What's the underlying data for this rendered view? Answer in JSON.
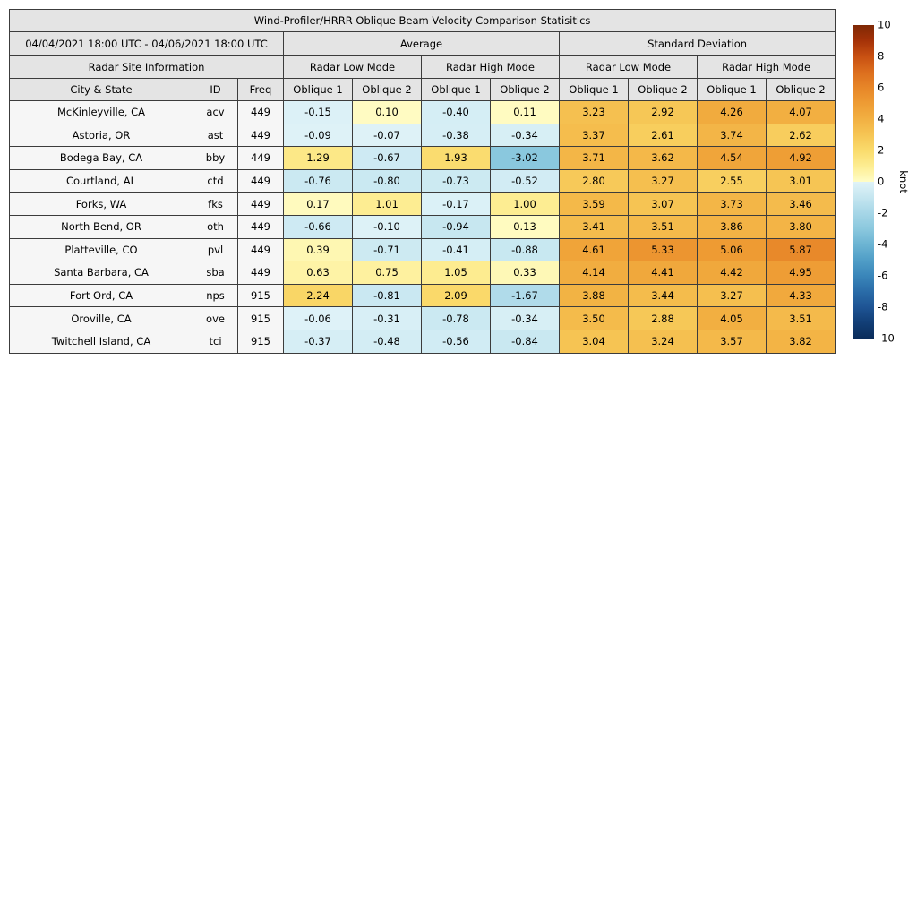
{
  "colors": {
    "header_bg": "#e4e4e4",
    "site_cell_bg": "#f6f6f6",
    "grid_line": "#3c3c3c",
    "page_bg": "#ffffff"
  },
  "chart_data": {
    "type": "table",
    "title": "Wind-Profiler/HRRR Oblique Beam Velocity Comparison Statisitics",
    "date_range": "04/04/2021 18:00 UTC - 04/06/2021 18:00 UTC",
    "header": {
      "site_info": "Radar Site Information",
      "top_groups": [
        "Average",
        "Standard Deviation"
      ],
      "mode_groups": [
        "Radar Low Mode",
        "Radar High Mode",
        "Radar Low Mode",
        "Radar High Mode"
      ],
      "columns": [
        "City & State",
        "ID",
        "Freq",
        "Oblique 1",
        "Oblique 2",
        "Oblique 1",
        "Oblique 2",
        "Oblique 1",
        "Oblique 2",
        "Oblique 1",
        "Oblique 2"
      ]
    },
    "rows": [
      {
        "city": "McKinleyville, CA",
        "id": "acv",
        "freq": "449",
        "values": [
          -0.15,
          0.1,
          -0.4,
          0.11,
          3.23,
          2.92,
          4.26,
          4.07
        ]
      },
      {
        "city": "Astoria, OR",
        "id": "ast",
        "freq": "449",
        "values": [
          -0.09,
          -0.07,
          -0.38,
          -0.34,
          3.37,
          2.61,
          3.74,
          2.62
        ]
      },
      {
        "city": "Bodega Bay, CA",
        "id": "bby",
        "freq": "449",
        "values": [
          1.29,
          -0.67,
          1.93,
          -3.02,
          3.71,
          3.62,
          4.54,
          4.92
        ]
      },
      {
        "city": "Courtland, AL",
        "id": "ctd",
        "freq": "449",
        "values": [
          -0.76,
          -0.8,
          -0.73,
          -0.52,
          2.8,
          3.27,
          2.55,
          3.01
        ]
      },
      {
        "city": "Forks, WA",
        "id": "fks",
        "freq": "449",
        "values": [
          0.17,
          1.01,
          -0.17,
          1.0,
          3.59,
          3.07,
          3.73,
          3.46
        ]
      },
      {
        "city": "North Bend, OR",
        "id": "oth",
        "freq": "449",
        "values": [
          -0.66,
          -0.1,
          -0.94,
          0.13,
          3.41,
          3.51,
          3.86,
          3.8
        ]
      },
      {
        "city": "Platteville, CO",
        "id": "pvl",
        "freq": "449",
        "values": [
          0.39,
          -0.71,
          -0.41,
          -0.88,
          4.61,
          5.33,
          5.06,
          5.87
        ]
      },
      {
        "city": "Santa Barbara, CA",
        "id": "sba",
        "freq": "449",
        "values": [
          0.63,
          0.75,
          1.05,
          0.33,
          4.14,
          4.41,
          4.42,
          4.95
        ]
      },
      {
        "city": "Fort Ord, CA",
        "id": "nps",
        "freq": "915",
        "values": [
          2.24,
          -0.81,
          2.09,
          -1.67,
          3.88,
          3.44,
          3.27,
          4.33
        ]
      },
      {
        "city": "Oroville, CA",
        "id": "ove",
        "freq": "915",
        "values": [
          -0.06,
          -0.31,
          -0.78,
          -0.34,
          3.5,
          2.88,
          4.05,
          3.51
        ]
      },
      {
        "city": "Twitchell Island, CA",
        "id": "tci",
        "freq": "915",
        "values": [
          -0.37,
          -0.48,
          -0.56,
          -0.84,
          3.04,
          3.24,
          3.57,
          3.82
        ]
      }
    ],
    "colorbar": {
      "label": "knot",
      "range": [
        -10,
        10
      ],
      "ticks": [
        10,
        8,
        6,
        4,
        2,
        0,
        -2,
        -4,
        -6,
        -8,
        -10
      ],
      "positive_stops": [
        [
          0,
          "#FFFDC7"
        ],
        [
          1,
          "#FDED92"
        ],
        [
          2,
          "#FADB6C"
        ],
        [
          3,
          "#F6C554"
        ],
        [
          4,
          "#F2B042"
        ],
        [
          5,
          "#EE9C34"
        ],
        [
          6,
          "#E78628"
        ],
        [
          7,
          "#DC6E1E"
        ],
        [
          8,
          "#C85012"
        ],
        [
          9,
          "#A53208"
        ],
        [
          10,
          "#7E2805"
        ]
      ],
      "negative_stops": [
        [
          0,
          "#E0F3F8"
        ],
        [
          -1,
          "#C5E6F0"
        ],
        [
          -2,
          "#A6D6E7"
        ],
        [
          -3,
          "#8BC8DE"
        ],
        [
          -4,
          "#6CB4D3"
        ],
        [
          -5,
          "#509EC7"
        ],
        [
          -6,
          "#3A86BA"
        ],
        [
          -7,
          "#2A6CA8"
        ],
        [
          -8,
          "#1E5494"
        ],
        [
          -9,
          "#123E76"
        ],
        [
          -10,
          "#0A2C5A"
        ]
      ]
    }
  }
}
